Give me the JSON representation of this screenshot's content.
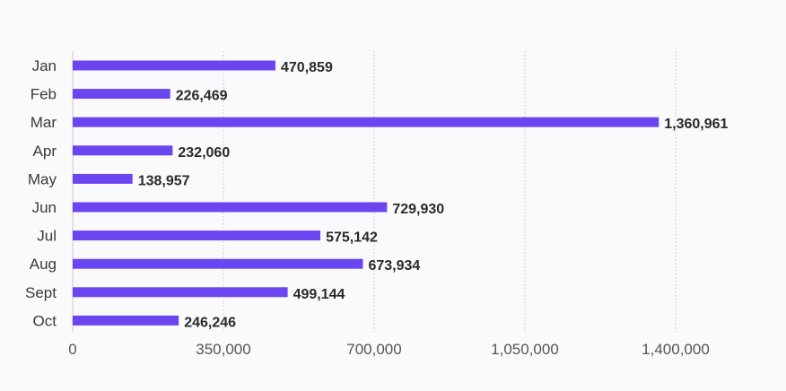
{
  "chart_data": {
    "type": "bar",
    "orientation": "horizontal",
    "categories": [
      "Jan",
      "Feb",
      "Mar",
      "Apr",
      "May",
      "Jun",
      "Jul",
      "Aug",
      "Sept",
      "Oct"
    ],
    "values": [
      470859,
      226469,
      1360961,
      232060,
      138957,
      729930,
      575142,
      673934,
      499144,
      246246
    ],
    "value_labels": [
      "470,859",
      "226,469",
      "1,360,961",
      "232,060",
      "138,957",
      "729,930",
      "575,142",
      "673,934",
      "499,144",
      "246,246"
    ],
    "x_ticks": [
      0,
      350000,
      700000,
      1050000,
      1400000
    ],
    "x_tick_labels": [
      "0",
      "350,000",
      "700,000",
      "1,050,000",
      "1,400,000"
    ],
    "xlim": [
      0,
      1400000
    ],
    "grid": true,
    "bar_color": "#6a45f0"
  }
}
